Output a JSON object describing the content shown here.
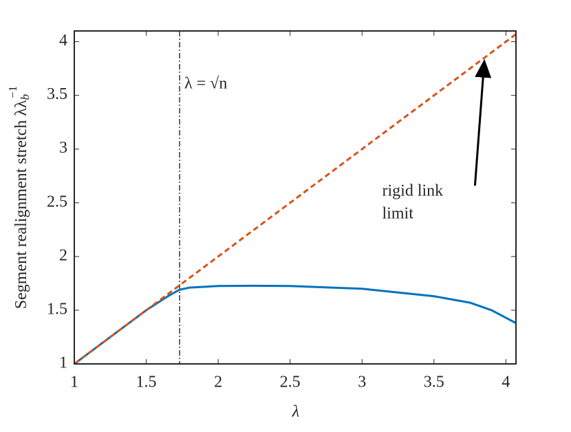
{
  "chart_data": {
    "type": "line",
    "xlabel": "λ",
    "ylabel": {
      "text": "Segment realignment stretch λλ",
      "sub": "b",
      "sup": "−1"
    },
    "xlim": [
      1,
      4.07
    ],
    "ylim": [
      1,
      4.1
    ],
    "xticks": [
      1,
      1.5,
      2,
      2.5,
      3,
      3.5,
      4
    ],
    "yticks": [
      1,
      1.5,
      2,
      2.5,
      3,
      3.5,
      4
    ],
    "series": [
      {
        "color": "#0072bd",
        "style": "solid",
        "x": [
          1,
          1.25,
          1.5,
          1.65,
          1.73,
          1.8,
          2,
          2.25,
          2.5,
          3,
          3.5,
          3.75,
          3.9,
          4.07
        ],
        "y": [
          1,
          1.25,
          1.5,
          1.63,
          1.69,
          1.71,
          1.725,
          1.728,
          1.725,
          1.7,
          1.63,
          1.57,
          1.5,
          1.38
        ]
      },
      {
        "color": "#d95319",
        "style": "dashed",
        "x": [
          1,
          4.07
        ],
        "y": [
          1,
          4.07
        ]
      }
    ],
    "vline": {
      "x": 1.732,
      "style": "dashdot"
    },
    "annotations": [
      {
        "text": "λ = √n",
        "x": 1.765,
        "y": 3.6
      },
      {
        "text": "rigid link",
        "x": 3.14,
        "y": 2.6
      },
      {
        "text": "limit",
        "x": 3.14,
        "y": 2.39
      }
    ],
    "arrow": {
      "from": [
        3.785,
        2.66
      ],
      "to": [
        3.85,
        3.82
      ]
    }
  }
}
